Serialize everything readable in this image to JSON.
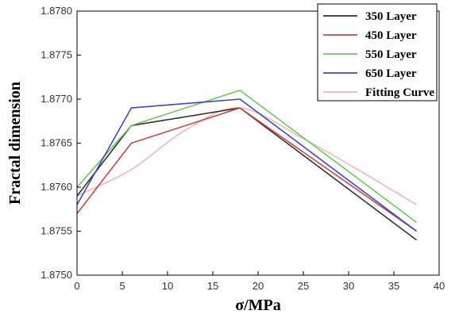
{
  "chart_data": {
    "type": "line",
    "title": "",
    "xlabel": "σ/MPa",
    "ylabel": "Fractal dimension",
    "xlim": [
      0,
      40
    ],
    "ylim": [
      1.875,
      1.878
    ],
    "xticks": [
      "0",
      "5",
      "10",
      "15",
      "20",
      "25",
      "30",
      "35",
      "40"
    ],
    "yticks": [
      "1.8750",
      "1.8755",
      "1.8760",
      "1.8765",
      "1.8770",
      "1.8775",
      "1.8780"
    ],
    "grid": false,
    "legend_position": "top-right",
    "series": [
      {
        "name": "350 Layer",
        "color": "#333333",
        "x": [
          0,
          6,
          18,
          37.5
        ],
        "y": [
          1.8759,
          1.8767,
          1.8769,
          1.8754
        ]
      },
      {
        "name": "450 Layer",
        "color": "#cc4444",
        "x": [
          0,
          6,
          18,
          37.5
        ],
        "y": [
          1.8757,
          1.8765,
          1.8769,
          1.8755
        ]
      },
      {
        "name": "550 Layer",
        "color": "#66cc55",
        "x": [
          0,
          6,
          18,
          37.5
        ],
        "y": [
          1.876,
          1.8767,
          1.8771,
          1.8756
        ]
      },
      {
        "name": "650 Layer",
        "color": "#4444cc",
        "x": [
          0,
          6,
          18,
          37.5
        ],
        "y": [
          1.8758,
          1.8769,
          1.877,
          1.8755
        ]
      },
      {
        "name": "Fitting Curve",
        "color": "#f0b8bc",
        "smooth": true,
        "x": [
          0,
          6,
          12,
          18,
          25,
          31,
          37.5
        ],
        "y": [
          1.8759,
          1.8762,
          1.87665,
          1.8769,
          1.87655,
          1.8762,
          1.8758
        ]
      }
    ]
  }
}
